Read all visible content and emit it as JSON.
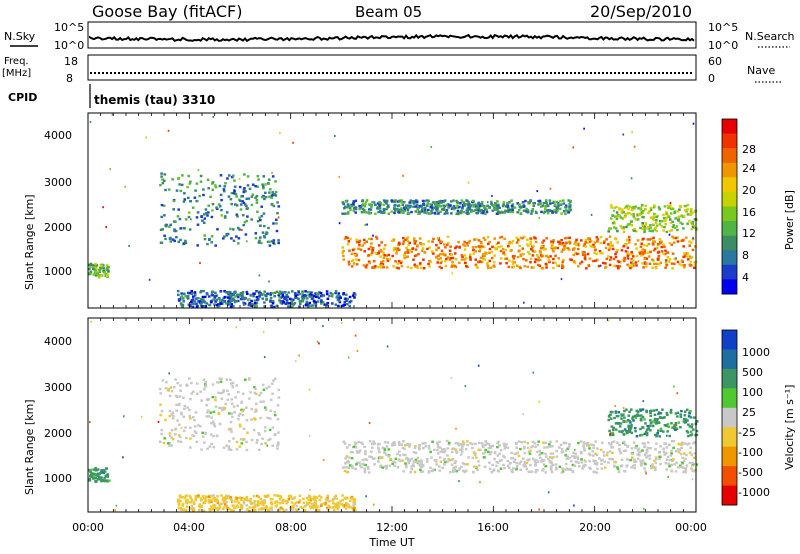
{
  "header": {
    "station": "Goose Bay (fitACF)",
    "beam": "Beam 05",
    "date": "20/Sep/2010"
  },
  "noise_panel": {
    "left_label": "N.Sky",
    "right_label": "N.Search",
    "left_ticks": [
      "10^5",
      "10^0"
    ],
    "right_ticks": [
      "10^5",
      "10^0"
    ]
  },
  "freq_panel": {
    "left_label": "Freq.",
    "left_units": "[MHz]",
    "left_ticks": [
      "18",
      "8"
    ],
    "right_label": "Nave",
    "right_ticks": [
      "60",
      "0"
    ]
  },
  "cpid": {
    "label": "CPID",
    "value": "themis (tau) 3310"
  },
  "time_axis": {
    "label": "Time UT",
    "ticks": [
      "00:00",
      "04:00",
      "08:00",
      "12:00",
      "16:00",
      "20:00",
      "00:00"
    ]
  },
  "chart_data": [
    {
      "type": "heatmap",
      "name": "power",
      "ylabel": "Slant Range [km]",
      "yticks": [
        "4000",
        "3000",
        "2000",
        "1000"
      ],
      "ylim": [
        200,
        4500
      ],
      "xlim_hours": [
        0,
        24
      ],
      "colorbar_label": "Power [dB]",
      "colorbar_ticks": [
        "28",
        "24",
        "20",
        "16",
        "12",
        "8",
        "4"
      ],
      "colorscale": [
        "#0000f0",
        "#1a3cc8",
        "#2a78a0",
        "#3c8c64",
        "#50b446",
        "#78c81e",
        "#c8d200",
        "#f0c800",
        "#f09600",
        "#f06400",
        "#f03200",
        "#e60000"
      ],
      "colorscale_range": [
        0,
        30
      ],
      "regions": [
        {
          "label": "morning_patch",
          "t": [
            0.0,
            0.8
          ],
          "r": [
            900,
            1200
          ],
          "level": 12
        },
        {
          "label": "arc_rising",
          "t": [
            2.8,
            7.5
          ],
          "r": [
            1600,
            3200
          ],
          "level": 8
        },
        {
          "label": "main_band",
          "t": [
            10.0,
            24.0
          ],
          "r": [
            1100,
            1800
          ],
          "level": 22
        },
        {
          "label": "upper_band",
          "t": [
            10.0,
            19.0
          ],
          "r": [
            2300,
            2600
          ],
          "level": 8
        },
        {
          "label": "late_upper",
          "t": [
            20.5,
            24.0
          ],
          "r": [
            1900,
            2500
          ],
          "level": 14
        },
        {
          "label": "ground_scatter_low",
          "t": [
            3.5,
            10.5
          ],
          "r": [
            250,
            600
          ],
          "level": 6
        }
      ]
    },
    {
      "type": "heatmap",
      "name": "velocity",
      "ylabel": "Slant Range [km]",
      "yticks": [
        "4000",
        "3000",
        "2000",
        "1000"
      ],
      "ylim": [
        200,
        4500
      ],
      "xlim_hours": [
        0,
        24
      ],
      "colorbar_label": "Velocity [m s⁻¹]",
      "colorbar_ticks": [
        "1000",
        "500",
        "100",
        "25",
        "-25",
        "-100",
        "-500",
        "-1000"
      ],
      "colorscale": [
        "#1040c8",
        "#1e6ea0",
        "#3c9664",
        "#50c832",
        "#c8c8c8",
        "#f0c832",
        "#f09600",
        "#f05000",
        "#e60000"
      ],
      "regions": [
        {
          "label": "morning_patch",
          "t": [
            0.0,
            0.8
          ],
          "r": [
            900,
            1200
          ],
          "level": 100
        },
        {
          "label": "arc_rising",
          "t": [
            2.8,
            7.5
          ],
          "r": [
            1600,
            3200
          ],
          "level": 0
        },
        {
          "label": "main_band",
          "t": [
            10.0,
            24.0
          ],
          "r": [
            1100,
            1800
          ],
          "level": 0
        },
        {
          "label": "late_upper",
          "t": [
            20.5,
            24.0
          ],
          "r": [
            1900,
            2500
          ],
          "level": 100
        },
        {
          "label": "ground_scatter_low",
          "t": [
            3.5,
            10.5
          ],
          "r": [
            250,
            600
          ],
          "level": -50
        }
      ]
    }
  ]
}
